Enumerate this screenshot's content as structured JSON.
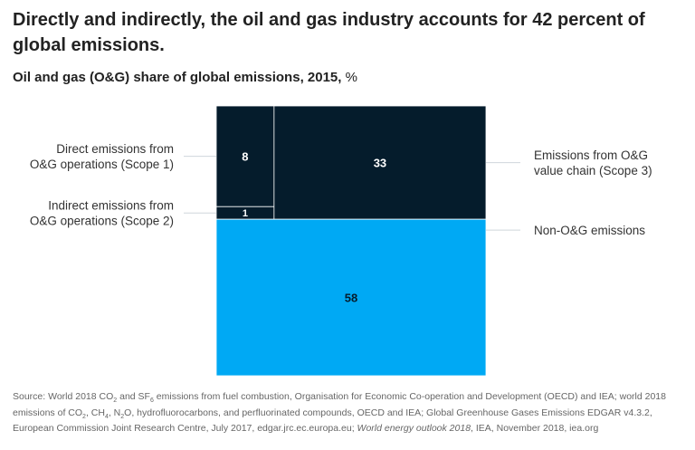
{
  "headline": "Directly and indirectly, the oil and gas industry accounts for 42 percent of global emissions.",
  "subtitle": {
    "main": "Oil and gas (O&G) share of global emissions, 2015,",
    "unit": "%"
  },
  "chart_data": {
    "type": "marimekko",
    "unit": "%",
    "total": 100,
    "segments": [
      {
        "id": "scope1",
        "label": [
          "Direct emissions from",
          "O&G operations (Scope 1)"
        ],
        "value": 8,
        "value_label": "8",
        "color": "#051c2c",
        "text_color": "#ffffff",
        "label_side": "left"
      },
      {
        "id": "scope2",
        "label": [
          "Indirect emissions from",
          "O&G operations (Scope 2)"
        ],
        "value": 1,
        "value_label": "1",
        "color": "#051c2c",
        "text_color": "#ffffff",
        "label_side": "left"
      },
      {
        "id": "scope3",
        "label": [
          "Emissions from O&G",
          "value chain (Scope 3)"
        ],
        "value": 33,
        "value_label": "33",
        "color": "#051c2c",
        "text_color": "#ffffff",
        "label_side": "right"
      },
      {
        "id": "non_og",
        "label": [
          "Non-O&G emissions"
        ],
        "value": 58,
        "value_label": "58",
        "color": "#00a9f4",
        "text_color": "#051c2c",
        "label_side": "right"
      }
    ]
  },
  "source": {
    "p1": "Source: World 2018 CO",
    "p1_sub": "2",
    "p2": " and SF",
    "p2_sub": "6",
    "p3": " emissions from fuel combustion, Organisation for Economic Co-operation and Development (OECD) and IEA; world 2018 emissions of CO",
    "p3_sub": "2",
    "p4": ", CH",
    "p4_sub": "4",
    "p5": ", N",
    "p5_sub": "2",
    "p6": "O, hydrofluorocarbons, and perfluorinated compounds, OECD and IEA; Global Greenhouse Gases Emissions EDGAR v4.3.2, European Commission Joint Research Centre, July 2017, edgar.jrc.ec.europa.eu; ",
    "p7": "World energy outlook 2018",
    "p8": ", IEA, November 2018, iea.org"
  }
}
